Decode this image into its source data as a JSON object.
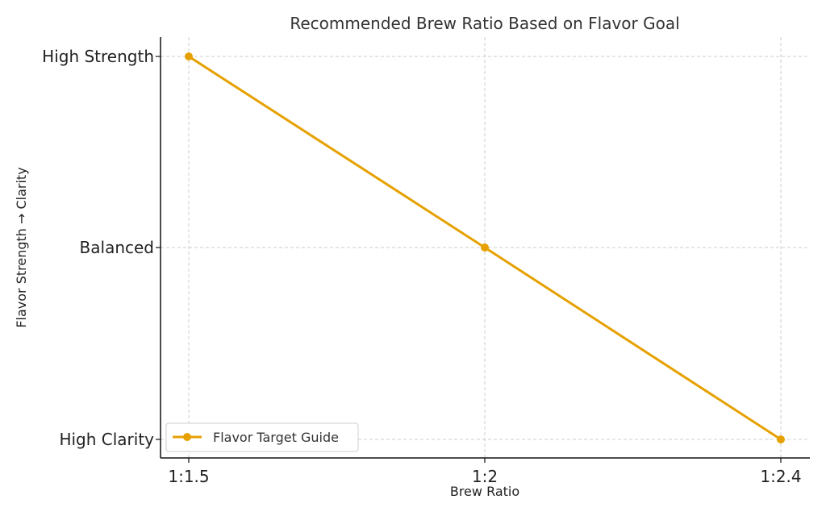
{
  "chart_data": {
    "type": "line",
    "title": "Recommended Brew Ratio Based on Flavor Goal",
    "xlabel": "Brew Ratio",
    "ylabel": "Flavor Strength → Clarity",
    "categories": [
      "1:1.5",
      "1:2",
      "1:2.4"
    ],
    "y_categories": [
      "High Strength",
      "Balanced",
      "High Clarity"
    ],
    "series": [
      {
        "name": "Flavor Target Guide",
        "values": [
          "High Strength",
          "Balanced",
          "High Clarity"
        ],
        "color": "#e6a100",
        "marker": "circle"
      }
    ],
    "grid": true,
    "legend_position": "bottom-left"
  }
}
